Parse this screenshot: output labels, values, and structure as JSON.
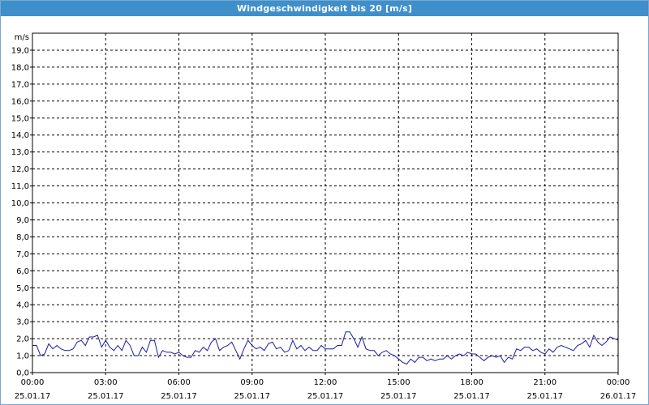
{
  "window": {
    "title": "Windgeschwindigkeit bis 20 [m/s]"
  },
  "colors": {
    "titlebar": "#3f8fca",
    "line": "#1a1aa8",
    "grid": "#000000"
  },
  "chart_data": {
    "type": "line",
    "title": "Windgeschwindigkeit bis 20 [m/s]",
    "ylabel": "m/s",
    "ylim": [
      0,
      20
    ],
    "y_ticks": [
      "0,0",
      "1,0",
      "2,0",
      "3,0",
      "4,0",
      "5,0",
      "6,0",
      "7,0",
      "8,0",
      "9,0",
      "10,0",
      "11,0",
      "12,0",
      "13,0",
      "14,0",
      "15,0",
      "16,0",
      "17,0",
      "18,0",
      "19,0"
    ],
    "x_ticks": [
      {
        "time": "00:00",
        "date": "25.01.17"
      },
      {
        "time": "03:00",
        "date": "25.01.17"
      },
      {
        "time": "06:00",
        "date": "25.01.17"
      },
      {
        "time": "09:00",
        "date": "25.01.17"
      },
      {
        "time": "12:00",
        "date": "25.01.17"
      },
      {
        "time": "15:00",
        "date": "25.01.17"
      },
      {
        "time": "18:00",
        "date": "25.01.17"
      },
      {
        "time": "21:00",
        "date": "25.01.17"
      },
      {
        "time": "00:00",
        "date": "26.01.17"
      }
    ],
    "grid": true,
    "x_range_minutes": [
      0,
      1440
    ],
    "points_raw": [
      [
        0,
        1.6
      ],
      [
        10,
        1.6
      ],
      [
        20,
        1.0
      ],
      [
        30,
        1.1
      ],
      [
        40,
        1.7
      ],
      [
        50,
        1.4
      ],
      [
        60,
        1.6
      ],
      [
        70,
        1.4
      ],
      [
        80,
        1.3
      ],
      [
        90,
        1.3
      ],
      [
        100,
        1.4
      ],
      [
        110,
        1.8
      ],
      [
        120,
        1.9
      ],
      [
        130,
        1.6
      ],
      [
        140,
        2.1
      ],
      [
        150,
        2.1
      ],
      [
        160,
        2.2
      ],
      [
        170,
        1.5
      ],
      [
        180,
        1.9
      ],
      [
        190,
        1.5
      ],
      [
        200,
        1.3
      ],
      [
        210,
        1.6
      ],
      [
        220,
        1.3
      ],
      [
        230,
        1.9
      ],
      [
        240,
        1.6
      ],
      [
        250,
        1.0
      ],
      [
        260,
        1.0
      ],
      [
        270,
        1.5
      ],
      [
        280,
        1.2
      ],
      [
        290,
        1.9
      ],
      [
        300,
        1.9
      ],
      [
        310,
        0.9
      ],
      [
        320,
        1.3
      ],
      [
        330,
        1.2
      ],
      [
        340,
        1.2
      ],
      [
        350,
        1.1
      ],
      [
        360,
        1.2
      ],
      [
        370,
        1.0
      ],
      [
        380,
        0.9
      ],
      [
        390,
        0.9
      ],
      [
        400,
        1.3
      ],
      [
        410,
        1.2
      ],
      [
        420,
        1.5
      ],
      [
        430,
        1.3
      ],
      [
        440,
        1.8
      ],
      [
        450,
        2.0
      ],
      [
        460,
        1.3
      ],
      [
        470,
        1.5
      ],
      [
        480,
        1.6
      ],
      [
        490,
        1.8
      ],
      [
        500,
        1.3
      ],
      [
        510,
        0.8
      ],
      [
        520,
        1.4
      ],
      [
        530,
        1.9
      ],
      [
        540,
        1.6
      ],
      [
        550,
        1.4
      ],
      [
        560,
        1.5
      ],
      [
        570,
        1.3
      ],
      [
        580,
        1.7
      ],
      [
        590,
        1.8
      ],
      [
        600,
        1.4
      ],
      [
        610,
        1.5
      ],
      [
        620,
        1.2
      ],
      [
        630,
        1.3
      ],
      [
        640,
        1.9
      ],
      [
        650,
        1.4
      ],
      [
        660,
        1.6
      ],
      [
        670,
        1.3
      ],
      [
        680,
        1.5
      ],
      [
        690,
        1.3
      ],
      [
        700,
        1.3
      ],
      [
        710,
        1.6
      ],
      [
        720,
        1.4
      ],
      [
        730,
        1.4
      ],
      [
        740,
        1.4
      ],
      [
        750,
        1.6
      ],
      [
        760,
        1.6
      ],
      [
        770,
        2.4
      ],
      [
        780,
        2.4
      ],
      [
        790,
        2.0
      ],
      [
        800,
        1.5
      ],
      [
        810,
        2.1
      ],
      [
        820,
        1.4
      ],
      [
        830,
        1.3
      ],
      [
        840,
        1.3
      ],
      [
        850,
        1.0
      ],
      [
        860,
        1.2
      ],
      [
        870,
        1.3
      ],
      [
        880,
        1.1
      ],
      [
        890,
        1.0
      ],
      [
        900,
        0.8
      ],
      [
        910,
        0.6
      ],
      [
        920,
        0.5
      ],
      [
        930,
        0.8
      ],
      [
        940,
        0.6
      ],
      [
        950,
        0.9
      ],
      [
        960,
        0.9
      ],
      [
        970,
        0.7
      ],
      [
        980,
        0.8
      ],
      [
        990,
        0.7
      ],
      [
        1000,
        0.8
      ],
      [
        1010,
        0.8
      ],
      [
        1020,
        1.0
      ],
      [
        1030,
        0.8
      ],
      [
        1040,
        1.0
      ],
      [
        1050,
        1.1
      ],
      [
        1060,
        1.0
      ],
      [
        1070,
        1.2
      ],
      [
        1080,
        1.1
      ],
      [
        1090,
        1.1
      ],
      [
        1100,
        0.9
      ],
      [
        1110,
        0.7
      ],
      [
        1120,
        0.9
      ],
      [
        1130,
        1.0
      ],
      [
        1140,
        0.9
      ],
      [
        1150,
        1.0
      ],
      [
        1160,
        0.6
      ],
      [
        1170,
        0.9
      ],
      [
        1180,
        0.8
      ],
      [
        1190,
        1.4
      ],
      [
        1200,
        1.3
      ],
      [
        1210,
        1.5
      ],
      [
        1220,
        1.5
      ],
      [
        1230,
        1.3
      ],
      [
        1240,
        1.4
      ],
      [
        1250,
        1.2
      ],
      [
        1260,
        1.1
      ],
      [
        1270,
        1.4
      ],
      [
        1280,
        1.2
      ],
      [
        1290,
        1.5
      ],
      [
        1300,
        1.6
      ],
      [
        1310,
        1.5
      ],
      [
        1320,
        1.4
      ],
      [
        1330,
        1.3
      ],
      [
        1340,
        1.6
      ],
      [
        1350,
        1.7
      ],
      [
        1360,
        1.9
      ],
      [
        1370,
        1.5
      ],
      [
        1380,
        2.2
      ],
      [
        1390,
        1.8
      ],
      [
        1400,
        1.6
      ],
      [
        1410,
        1.8
      ],
      [
        1420,
        2.1
      ],
      [
        1430,
        2.0
      ],
      [
        1440,
        1.9
      ]
    ]
  }
}
